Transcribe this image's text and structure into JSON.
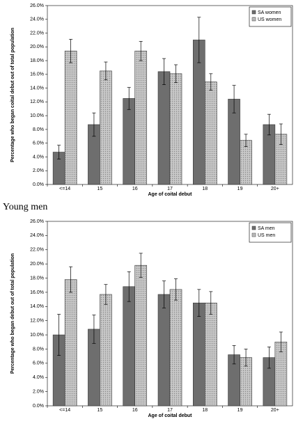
{
  "chart_data": [
    {
      "type": "bar",
      "x_label": "Age of coital debut",
      "y_label": "Percentage who began coital debut out of total population",
      "categories": [
        "<=14",
        "15",
        "16",
        "17",
        "18",
        "19",
        "20+"
      ],
      "series": [
        {
          "name": "SA women",
          "color": "#6e6e6e",
          "values": [
            4.7,
            8.7,
            12.5,
            16.4,
            21.0,
            12.4,
            8.7
          ],
          "errors": [
            1.0,
            1.7,
            1.6,
            1.9,
            3.3,
            2.0,
            1.5
          ]
        },
        {
          "name": "US women",
          "color": "#c8c8c8",
          "pattern": "dots",
          "values": [
            19.4,
            16.5,
            19.4,
            16.1,
            14.9,
            6.4,
            7.3
          ],
          "errors": [
            1.7,
            1.3,
            1.4,
            1.3,
            1.2,
            0.9,
            1.5
          ]
        }
      ],
      "ylim": [
        0,
        26
      ],
      "yticks": [
        {
          "value": 0,
          "label": "0.0%"
        },
        {
          "value": 2,
          "label": "2.0%"
        },
        {
          "value": 4,
          "label": "4.0%"
        },
        {
          "value": 6,
          "label": "6.0%"
        },
        {
          "value": 8,
          "label": "8.0%"
        },
        {
          "value": 10,
          "label": "10.0%"
        },
        {
          "value": 12,
          "label": "12.0%"
        },
        {
          "value": 14,
          "label": "14.0%"
        },
        {
          "value": 16,
          "label": "16.0%"
        },
        {
          "value": 18,
          "label": "18.0%"
        },
        {
          "value": 20,
          "label": "20.0%"
        },
        {
          "value": 22,
          "label": "22.0%"
        },
        {
          "value": 24,
          "label": "24.0%"
        },
        {
          "value": 26,
          "label": "26.0%"
        }
      ],
      "legend": "top-right"
    },
    {
      "type": "bar",
      "title": "Young men",
      "x_label": "Age of coital debut",
      "y_label": "Percentage who began debut out of total population",
      "categories": [
        "<=14",
        "15",
        "16",
        "17",
        "18",
        "19",
        "20+"
      ],
      "series": [
        {
          "name": "SA men",
          "color": "#6e6e6e",
          "values": [
            10.0,
            10.8,
            16.8,
            15.7,
            14.5,
            7.2,
            6.8
          ],
          "errors": [
            2.9,
            2.0,
            2.1,
            1.9,
            1.9,
            1.3,
            1.5
          ]
        },
        {
          "name": "US men",
          "color": "#c8c8c8",
          "pattern": "dots",
          "values": [
            17.8,
            15.7,
            19.8,
            16.4,
            14.5,
            6.8,
            9.0
          ],
          "errors": [
            1.8,
            1.4,
            1.7,
            1.5,
            1.6,
            1.2,
            1.4
          ]
        }
      ],
      "ylim": [
        0,
        26
      ],
      "yticks": [
        {
          "value": 0,
          "label": "0.0%"
        },
        {
          "value": 2,
          "label": "2.0%"
        },
        {
          "value": 4,
          "label": "4.0%"
        },
        {
          "value": 6,
          "label": "6.0%"
        },
        {
          "value": 8,
          "label": "8.0%"
        },
        {
          "value": 10,
          "label": "10.0%"
        },
        {
          "value": 12,
          "label": "12.0%"
        },
        {
          "value": 14,
          "label": "14.0%"
        },
        {
          "value": 16,
          "label": "16.0%"
        },
        {
          "value": 18,
          "label": "18.0%"
        },
        {
          "value": 20,
          "label": "20.0%"
        },
        {
          "value": 22,
          "label": "22.0%"
        },
        {
          "value": 24,
          "label": "24.0%"
        },
        {
          "value": 26,
          "label": "26.0%"
        }
      ],
      "legend": "top-right"
    }
  ]
}
